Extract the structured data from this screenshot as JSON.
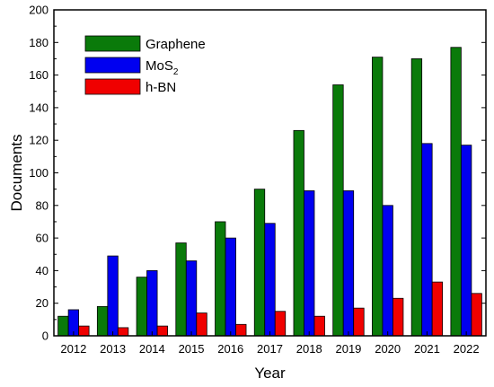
{
  "chart_data": {
    "type": "bar",
    "xlabel": "Year",
    "ylabel": "Documents",
    "ylim": [
      0,
      200
    ],
    "yticks": [
      0,
      20,
      40,
      60,
      80,
      100,
      120,
      140,
      160,
      180,
      200
    ],
    "categories": [
      "2012",
      "2013",
      "2014",
      "2015",
      "2016",
      "2017",
      "2018",
      "2019",
      "2020",
      "2021",
      "2022"
    ],
    "series": [
      {
        "name": "Graphene",
        "color": "#0a7a0a",
        "values": [
          12,
          18,
          36,
          57,
          70,
          90,
          126,
          154,
          171,
          170,
          177
        ]
      },
      {
        "name": "MoS",
        "name_subscript": "2",
        "color": "#0000f0",
        "values": [
          16,
          49,
          40,
          46,
          60,
          69,
          89,
          89,
          80,
          118,
          117
        ]
      },
      {
        "name": "h-BN",
        "color": "#f00000",
        "values": [
          6,
          5,
          6,
          14,
          7,
          15,
          12,
          17,
          23,
          33,
          26
        ]
      }
    ],
    "legend_position": "top-left",
    "grid": false
  }
}
